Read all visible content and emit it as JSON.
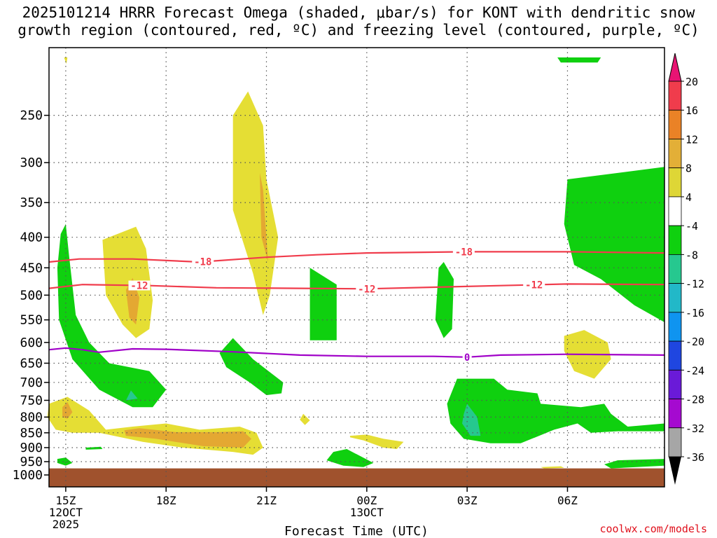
{
  "title_line1": "2025101214 HRRR Forecast Omega (shaded, μbar/s) for KONT with dendritic snow",
  "title_line2": "growth region (contoured, red, ºC) and freezing level (contoured, purple, ºC)",
  "credit": "coolwx.com/models",
  "chart_data": {
    "type": "contour",
    "xlabel": "Forecast Time (UTC)",
    "ylabel": "",
    "y_scale": "log-pressure",
    "y_unit": "hPa",
    "ylim": [
      1000,
      200
    ],
    "y_ticks": [
      250,
      300,
      350,
      400,
      450,
      500,
      550,
      600,
      650,
      700,
      750,
      800,
      850,
      900,
      950,
      1000
    ],
    "xlim": [
      14.5,
      32.9
    ],
    "x_ticks": [
      {
        "hour": 15,
        "label": "15Z",
        "sub1": "12OCT",
        "sub2": "2025"
      },
      {
        "hour": 18,
        "label": "18Z",
        "sub1": "",
        "sub2": ""
      },
      {
        "hour": 21,
        "label": "21Z",
        "sub1": "",
        "sub2": ""
      },
      {
        "hour": 24,
        "label": "00Z",
        "sub1": "13OCT",
        "sub2": ""
      },
      {
        "hour": 27,
        "label": "03Z",
        "sub1": "",
        "sub2": ""
      },
      {
        "hour": 30,
        "label": "06Z",
        "sub1": "",
        "sub2": ""
      }
    ],
    "grid": true,
    "colorbar": {
      "labels": [
        "20",
        "16",
        "12",
        "8",
        "4",
        "-4",
        "-8",
        "-12",
        "-16",
        "-20",
        "-24",
        "-28",
        "-32",
        "-36"
      ],
      "colors": [
        "#f03c4c",
        "#ea8226",
        "#e3af37",
        "#ded636",
        "#ffffff",
        "#0fd00f",
        "#26c88f",
        "#22b8c8",
        "#0f94f0",
        "#1f46e0",
        "#6a1ad8",
        "#a50ad0",
        "#a6a6a6"
      ],
      "top_arrow_color": "#e81473",
      "bottom_arrow_color": "#000000"
    },
    "ground_color": "#a0522d",
    "shading_colors": {
      "yellow": "#e5de34",
      "orange": "#e4a832",
      "green": "#0fd00f",
      "teal": "#26c88f"
    },
    "contours": [
      {
        "value": -18,
        "label": "-18",
        "color": "#f03c4c",
        "points": [
          [
            14.5,
            440
          ],
          [
            15.4,
            435
          ],
          [
            17,
            435
          ],
          [
            19,
            440
          ],
          [
            21,
            432
          ],
          [
            22.5,
            428
          ],
          [
            24,
            425
          ],
          [
            27,
            423
          ],
          [
            30,
            423
          ],
          [
            32.9,
            425
          ]
        ],
        "label_hours": [
          19.1,
          26.9
        ]
      },
      {
        "value": -12,
        "label": "-12",
        "color": "#f03c4c",
        "points": [
          [
            14.5,
            487
          ],
          [
            15.5,
            480
          ],
          [
            17.5,
            482
          ],
          [
            19.5,
            486
          ],
          [
            22,
            487
          ],
          [
            24,
            488
          ],
          [
            26,
            485
          ],
          [
            28,
            482
          ],
          [
            30,
            479
          ],
          [
            32.9,
            480
          ]
        ],
        "label_hours": [
          17.2,
          24,
          29
        ]
      },
      {
        "value": 0,
        "label": "0",
        "color": "#a000c8",
        "points": [
          [
            14.5,
            617
          ],
          [
            15,
            613
          ],
          [
            15.5,
            617
          ],
          [
            16,
            623
          ],
          [
            17,
            615
          ],
          [
            18,
            616
          ],
          [
            20,
            622
          ],
          [
            22,
            630
          ],
          [
            24,
            633
          ],
          [
            26,
            633
          ],
          [
            27,
            635
          ],
          [
            28,
            630
          ],
          [
            30,
            628
          ],
          [
            32.9,
            630
          ]
        ],
        "label_hours": [
          27
        ]
      }
    ],
    "regions": [
      {
        "color": "yellow",
        "points": [
          [
            14.95,
            200
          ],
          [
            15.05,
            200
          ],
          [
            15.02,
            205
          ]
        ]
      },
      {
        "color": "yellow",
        "points": [
          [
            16.1,
            404
          ],
          [
            17.1,
            384
          ],
          [
            17.4,
            418
          ],
          [
            17.6,
            510
          ],
          [
            17.5,
            570
          ],
          [
            17.1,
            590
          ],
          [
            16.7,
            560
          ],
          [
            16.2,
            500
          ]
        ]
      },
      {
        "color": "orange",
        "points": [
          [
            16.8,
            490
          ],
          [
            17.0,
            468
          ],
          [
            17.2,
            505
          ],
          [
            17.1,
            560
          ],
          [
            16.9,
            545
          ]
        ]
      },
      {
        "color": "yellow",
        "points": [
          [
            20.0,
            250
          ],
          [
            20.45,
            228
          ],
          [
            20.9,
            260
          ],
          [
            21.0,
            320
          ],
          [
            21.35,
            400
          ],
          [
            21.1,
            500
          ],
          [
            20.9,
            540
          ],
          [
            20.6,
            460
          ],
          [
            20.0,
            360
          ]
        ]
      },
      {
        "color": "orange",
        "points": [
          [
            20.8,
            312
          ],
          [
            20.9,
            333
          ],
          [
            21.05,
            440
          ],
          [
            20.85,
            400
          ]
        ]
      },
      {
        "color": "green",
        "points": [
          [
            14.85,
            395
          ],
          [
            15.0,
            380
          ],
          [
            15.1,
            430
          ],
          [
            15.3,
            540
          ],
          [
            15.7,
            600
          ],
          [
            16.3,
            650
          ],
          [
            17.5,
            670
          ],
          [
            18.0,
            720
          ],
          [
            17.6,
            770
          ],
          [
            17.0,
            770
          ],
          [
            16.0,
            720
          ],
          [
            15.2,
            640
          ],
          [
            14.8,
            550
          ],
          [
            14.75,
            450
          ]
        ]
      },
      {
        "color": "teal",
        "points": [
          [
            16.8,
            750
          ],
          [
            16.95,
            722
          ],
          [
            17.15,
            745
          ]
        ]
      },
      {
        "color": "yellow",
        "points": [
          [
            14.5,
            760
          ],
          [
            15.05,
            740
          ],
          [
            15.7,
            780
          ],
          [
            16.2,
            840
          ],
          [
            17,
            830
          ],
          [
            18,
            820
          ],
          [
            19,
            840
          ],
          [
            20.2,
            830
          ],
          [
            20.7,
            850
          ],
          [
            20.9,
            900
          ],
          [
            20.6,
            925
          ],
          [
            20,
            915
          ],
          [
            18.5,
            900
          ],
          [
            17.3,
            880
          ],
          [
            16,
            850
          ],
          [
            15.2,
            850
          ],
          [
            14.7,
            840
          ],
          [
            14.45,
            800
          ]
        ]
      },
      {
        "color": "orange",
        "points": [
          [
            14.9,
            770
          ],
          [
            15.05,
            755
          ],
          [
            15.2,
            785
          ],
          [
            15.05,
            805
          ],
          [
            14.9,
            800
          ]
        ]
      },
      {
        "color": "orange",
        "points": [
          [
            16.75,
            842
          ],
          [
            17.2,
            835
          ],
          [
            18.3,
            848
          ],
          [
            19.5,
            848
          ],
          [
            20.3,
            845
          ],
          [
            20.55,
            870
          ],
          [
            20.3,
            900
          ],
          [
            19.1,
            895
          ],
          [
            17.7,
            870
          ],
          [
            16.8,
            860
          ]
        ]
      },
      {
        "color": "green",
        "points": [
          [
            14.75,
            940
          ],
          [
            15.0,
            935
          ],
          [
            15.2,
            955
          ],
          [
            15.0,
            965
          ],
          [
            14.75,
            955
          ]
        ]
      },
      {
        "color": "green",
        "points": [
          [
            15.6,
            900
          ],
          [
            16.05,
            897
          ],
          [
            16.1,
            905
          ],
          [
            15.6,
            907
          ]
        ]
      },
      {
        "color": "green",
        "points": [
          [
            19.6,
            625
          ],
          [
            20.0,
            590
          ],
          [
            20.6,
            640
          ],
          [
            21.5,
            700
          ],
          [
            21.45,
            730
          ],
          [
            21.0,
            735
          ],
          [
            20.5,
            700
          ],
          [
            19.8,
            660
          ]
        ]
      },
      {
        "color": "yellow",
        "points": [
          [
            22.0,
            808
          ],
          [
            22.1,
            790
          ],
          [
            22.3,
            810
          ],
          [
            22.15,
            825
          ]
        ]
      },
      {
        "color": "green",
        "points": [
          [
            22.3,
            450
          ],
          [
            23.1,
            480
          ],
          [
            23.1,
            595
          ],
          [
            22.3,
            595
          ]
        ]
      },
      {
        "color": "green",
        "points": [
          [
            23.0,
            915
          ],
          [
            23.4,
            905
          ],
          [
            24.2,
            955
          ],
          [
            23.9,
            970
          ],
          [
            23.3,
            965
          ],
          [
            22.8,
            945
          ]
        ]
      },
      {
        "color": "yellow",
        "points": [
          [
            23.5,
            860
          ],
          [
            24.0,
            856
          ],
          [
            24.5,
            870
          ],
          [
            25.1,
            880
          ],
          [
            24.9,
            905
          ],
          [
            24.5,
            900
          ],
          [
            23.9,
            875
          ],
          [
            23.5,
            865
          ]
        ]
      },
      {
        "color": "green",
        "points": [
          [
            26.15,
            450
          ],
          [
            26.3,
            440
          ],
          [
            26.6,
            470
          ],
          [
            26.55,
            570
          ],
          [
            26.3,
            590
          ],
          [
            26.05,
            550
          ]
        ]
      },
      {
        "color": "green",
        "points": [
          [
            26.7,
            690
          ],
          [
            27.8,
            690
          ],
          [
            28.2,
            720
          ],
          [
            29.1,
            730
          ],
          [
            29.2,
            760
          ],
          [
            30.4,
            770
          ],
          [
            31.1,
            760
          ],
          [
            31.3,
            790
          ],
          [
            31.8,
            830
          ],
          [
            32.9,
            820
          ],
          [
            32.9,
            845
          ],
          [
            31.5,
            845
          ],
          [
            30.7,
            850
          ],
          [
            30.3,
            820
          ],
          [
            29.6,
            840
          ],
          [
            28.6,
            885
          ],
          [
            27.7,
            885
          ],
          [
            26.9,
            870
          ],
          [
            26.5,
            820
          ],
          [
            26.4,
            760
          ]
        ]
      },
      {
        "color": "teal",
        "points": [
          [
            26.9,
            790
          ],
          [
            27.0,
            760
          ],
          [
            27.3,
            800
          ],
          [
            27.4,
            860
          ],
          [
            27.1,
            860
          ],
          [
            26.85,
            820
          ]
        ]
      },
      {
        "color": "yellow",
        "points": [
          [
            29.9,
            585
          ],
          [
            30.5,
            572
          ],
          [
            31.2,
            600
          ],
          [
            31.3,
            640
          ],
          [
            30.8,
            690
          ],
          [
            30.2,
            670
          ],
          [
            29.9,
            620
          ]
        ]
      },
      {
        "color": "green",
        "points": [
          [
            30.0,
            320
          ],
          [
            32.9,
            305
          ],
          [
            32.9,
            555
          ],
          [
            32.0,
            520
          ],
          [
            31.0,
            470
          ],
          [
            30.2,
            445
          ],
          [
            29.9,
            380
          ]
        ]
      },
      {
        "color": "green",
        "points": [
          [
            29.7,
            200
          ],
          [
            31.0,
            200
          ],
          [
            30.9,
            204
          ],
          [
            29.8,
            204
          ]
        ]
      },
      {
        "color": "green",
        "points": [
          [
            31.1,
            960
          ],
          [
            31.5,
            945
          ],
          [
            32.9,
            940
          ],
          [
            32.9,
            965
          ],
          [
            31.3,
            975
          ]
        ]
      },
      {
        "color": "yellow",
        "points": [
          [
            29.2,
            970
          ],
          [
            29.8,
            967
          ],
          [
            29.9,
            973
          ],
          [
            29.3,
            975
          ]
        ]
      }
    ]
  }
}
